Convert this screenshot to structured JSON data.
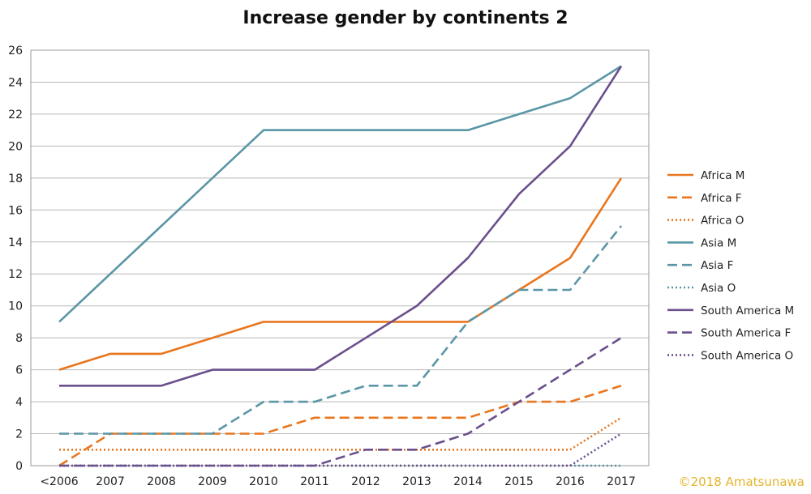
{
  "chart_data": {
    "type": "line",
    "title": "Increase gender by continents 2",
    "xlabel": "",
    "ylabel": "",
    "categories": [
      "<2006",
      "2007",
      "2008",
      "2009",
      "2010",
      "2011",
      "2012",
      "2013",
      "2014",
      "2015",
      "2016",
      "2017"
    ],
    "ylim": [
      0,
      26
    ],
    "yticks": [
      0,
      2,
      4,
      6,
      8,
      10,
      12,
      14,
      16,
      18,
      20,
      22,
      24,
      26
    ],
    "grid": true,
    "legend_position": "right",
    "series": [
      {
        "name": "Africa M",
        "color": "#e8761e",
        "dash": "solid",
        "values": [
          6,
          7,
          7,
          8,
          9,
          9,
          9,
          9,
          9,
          11,
          13,
          18
        ]
      },
      {
        "name": "Africa F",
        "color": "#e8761e",
        "dash": "dashed",
        "values": [
          0,
          2,
          2,
          2,
          2,
          3,
          3,
          3,
          3,
          4,
          4,
          5
        ]
      },
      {
        "name": "Africa O",
        "color": "#e8761e",
        "dash": "dotted",
        "values": [
          1,
          1,
          1,
          1,
          1,
          1,
          1,
          1,
          1,
          1,
          1,
          3
        ]
      },
      {
        "name": "Asia M",
        "color": "#5b96a6",
        "dash": "solid",
        "values": [
          9,
          12,
          15,
          18,
          21,
          21,
          21,
          21,
          21,
          22,
          23,
          25
        ]
      },
      {
        "name": "Asia F",
        "color": "#5b96a6",
        "dash": "dashed",
        "values": [
          2,
          2,
          2,
          2,
          4,
          4,
          5,
          5,
          9,
          11,
          11,
          15
        ]
      },
      {
        "name": "Asia O",
        "color": "#5b96a6",
        "dash": "dotted",
        "values": [
          0,
          0,
          0,
          0,
          0,
          0,
          0,
          0,
          0,
          0,
          0,
          0
        ]
      },
      {
        "name": "South America M",
        "color": "#6a4f8c",
        "dash": "solid",
        "values": [
          5,
          5,
          5,
          6,
          6,
          6,
          8,
          10,
          13,
          17,
          20,
          25
        ]
      },
      {
        "name": "South America F",
        "color": "#6a4f8c",
        "dash": "dashed",
        "values": [
          0,
          0,
          0,
          0,
          0,
          0,
          1,
          1,
          2,
          4,
          6,
          8
        ]
      },
      {
        "name": "South America O",
        "color": "#6a4f8c",
        "dash": "dotted",
        "values": [
          0,
          0,
          0,
          0,
          0,
          0,
          0,
          0,
          0,
          0,
          0,
          2
        ]
      }
    ]
  },
  "watermark": "©2018 Amatsunawa"
}
